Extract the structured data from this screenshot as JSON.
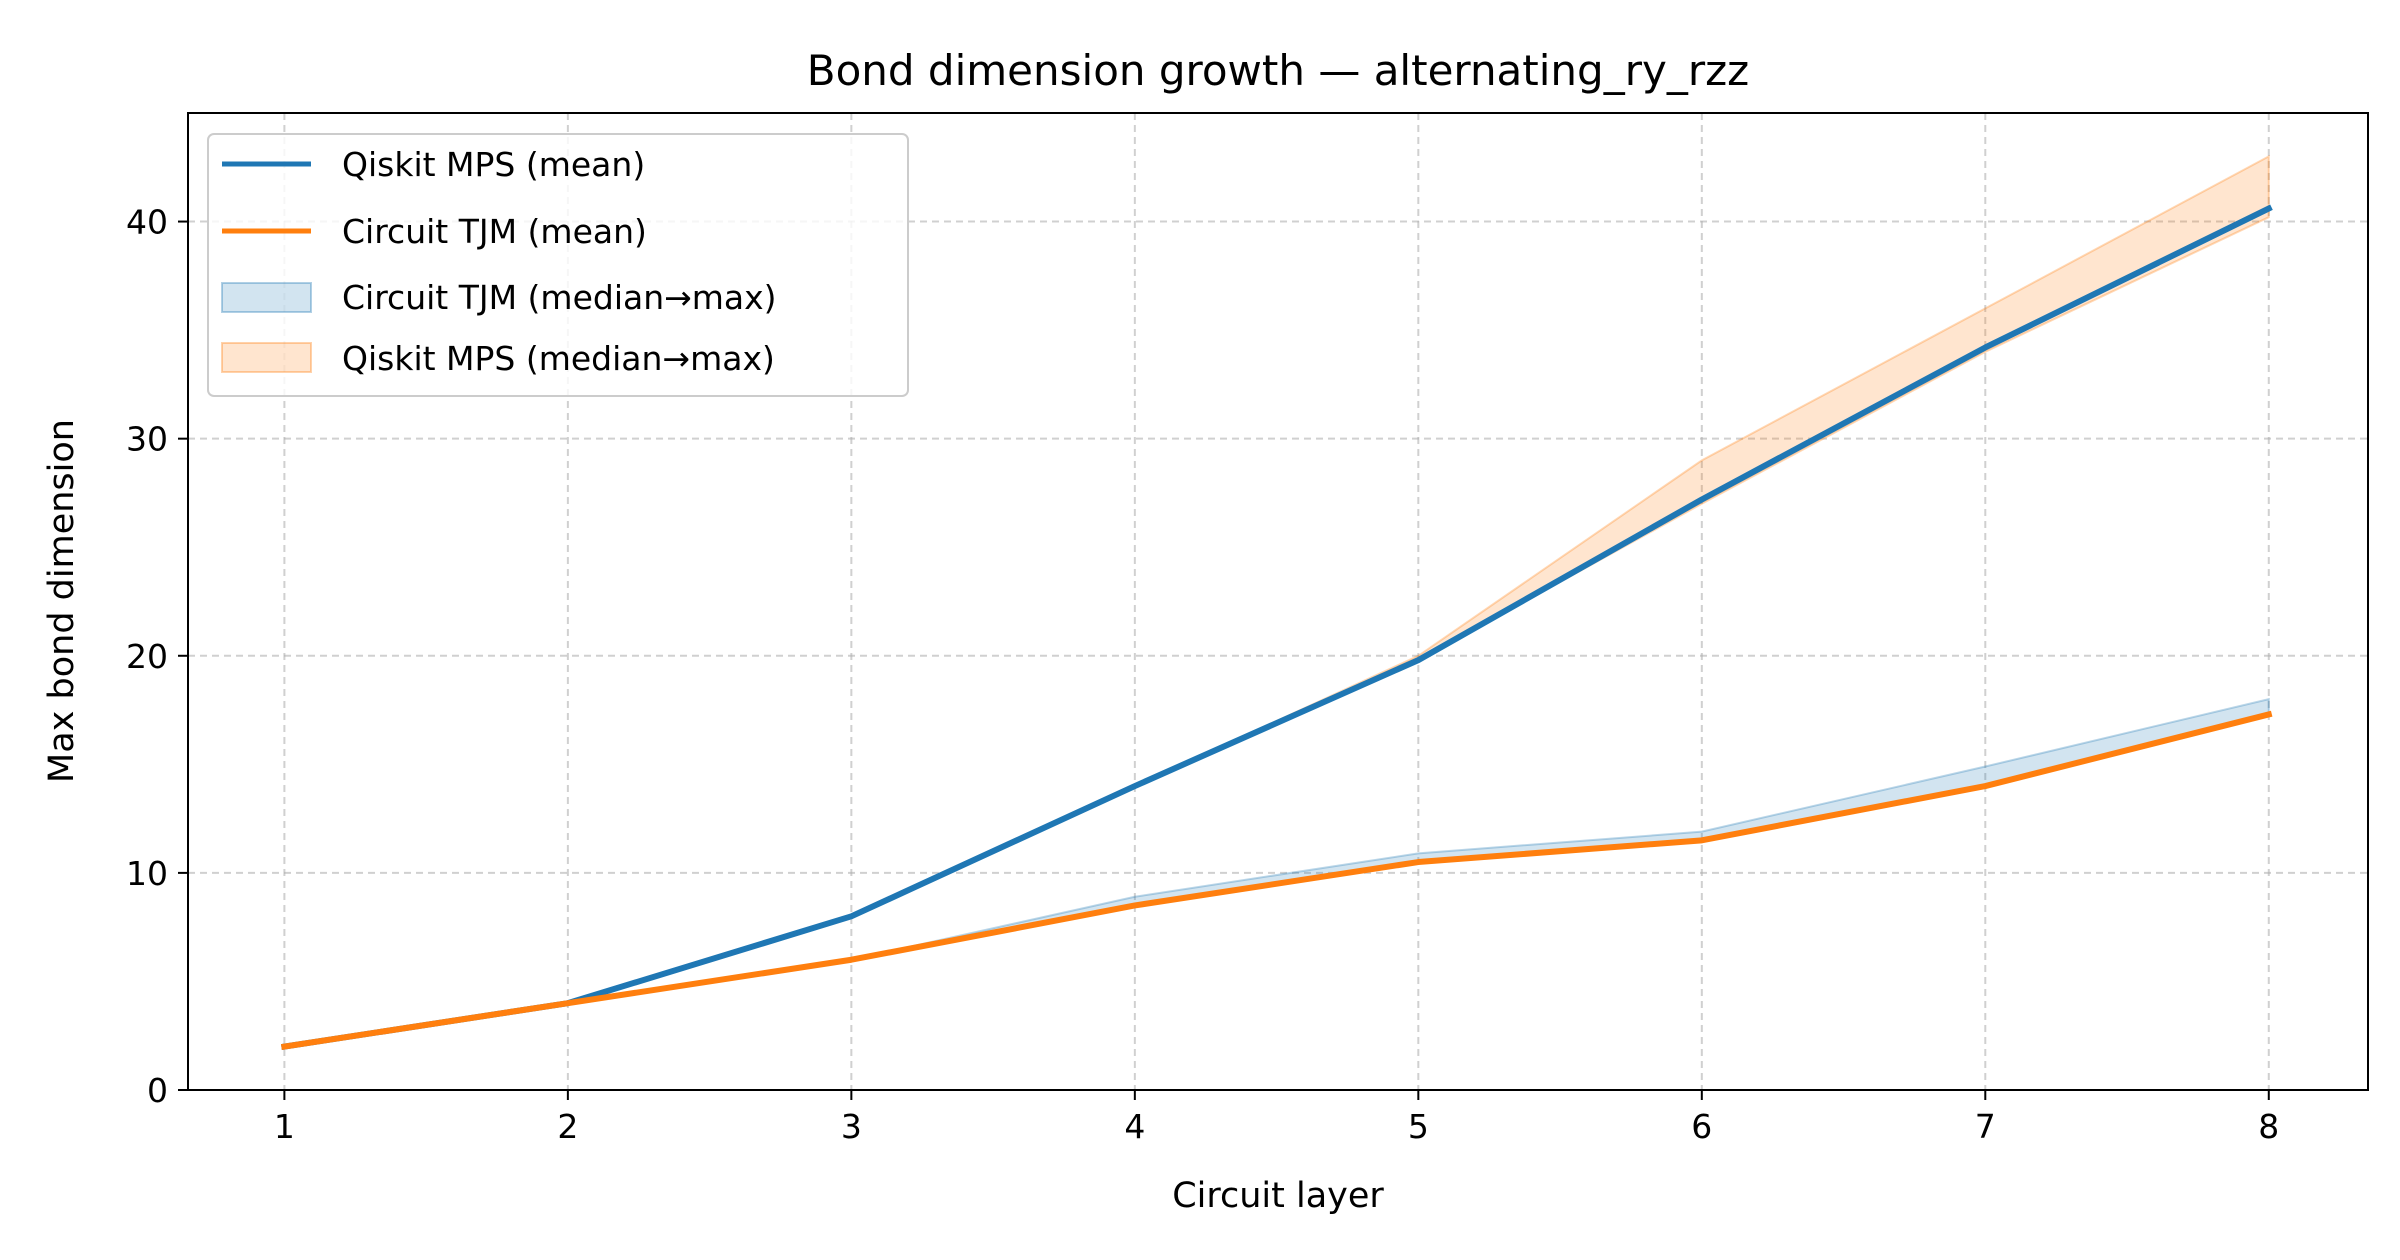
{
  "chart_data": {
    "type": "line",
    "title": "Bond dimension growth — alternating_ry_rzz",
    "xlabel": "Circuit layer",
    "ylabel": "Max bond dimension",
    "x": [
      1,
      2,
      3,
      4,
      5,
      6,
      7,
      8
    ],
    "xlim": [
      0.66,
      8.35
    ],
    "ylim": [
      0,
      45
    ],
    "xticks": [
      "1",
      "2",
      "3",
      "4",
      "5",
      "6",
      "7",
      "8"
    ],
    "yticks": [
      "0",
      "10",
      "20",
      "30",
      "40"
    ],
    "ytick_values": [
      0,
      10,
      20,
      30,
      40
    ],
    "grid": true,
    "legend_position": "top-left",
    "series": [
      {
        "name": "Qiskit MPS (mean)",
        "kind": "line",
        "color": "#1f77b4",
        "values": [
          2,
          4,
          8,
          14,
          19.8,
          27.2,
          34.2,
          40.6
        ]
      },
      {
        "name": "Circuit TJM (mean)",
        "kind": "line",
        "color": "#ff7f0e",
        "values": [
          2,
          4,
          6,
          8.5,
          10.5,
          11.5,
          14,
          17.3
        ]
      }
    ],
    "bands": [
      {
        "name": "Circuit TJM (median→max)",
        "color": "#1f77b4",
        "lower": [
          2,
          4,
          6,
          8.5,
          10.5,
          11.5,
          14,
          17.3
        ],
        "upper": [
          2,
          4,
          6,
          8.9,
          10.9,
          11.9,
          14.9,
          18.0
        ]
      },
      {
        "name": "Qiskit MPS (median→max)",
        "color": "#ff7f0e",
        "lower": [
          2,
          4,
          8,
          14,
          19.8,
          27.0,
          34.0,
          40.2
        ],
        "upper": [
          2,
          4,
          8,
          14,
          20.0,
          29.0,
          36.0,
          43.0
        ]
      }
    ]
  }
}
